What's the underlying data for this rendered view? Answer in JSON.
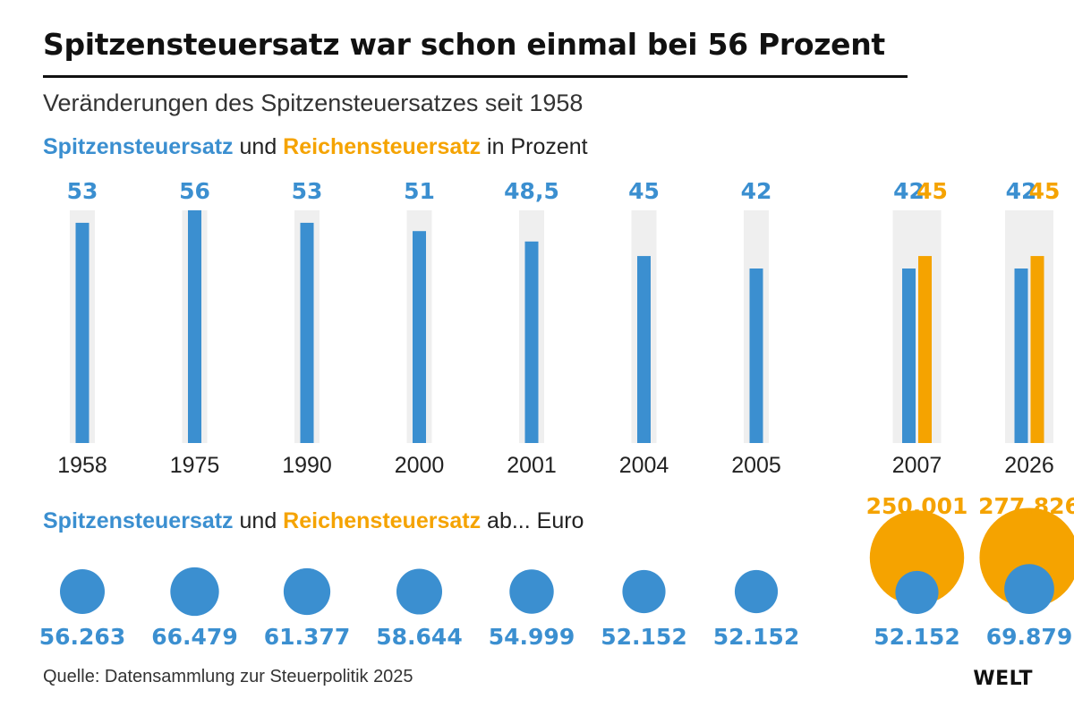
{
  "header": {
    "title": "Spitzensteuersatz war schon einmal bei 56 Prozent",
    "subtitle": "Veränderungen des Spitzensteuersatzes seit 1958"
  },
  "legend_top": {
    "blue": "Spitzensteuersatz",
    "mid": " und ",
    "orange": "Reichensteuersatz",
    "tail": " in Prozent"
  },
  "legend_bottom": {
    "blue": "Spitzensteuersatz",
    "mid": " und ",
    "orange": "Reichensteuersatz",
    "tail": " ab... Euro"
  },
  "footer": {
    "source": "Quelle: Datensammlung zur Steuerpolitik 2025",
    "logo": "WELT"
  },
  "colors": {
    "blue": "#3b8fd0",
    "orange": "#f5a300",
    "track": "#efefef"
  },
  "chart_data": [
    {
      "type": "bar",
      "categories": [
        "1958",
        "1975",
        "1990",
        "2000",
        "2001",
        "2004",
        "2005",
        "2007",
        "2026"
      ],
      "series": [
        {
          "name": "Spitzensteuersatz",
          "values": [
            53,
            56,
            53,
            51,
            48.5,
            45,
            42,
            42,
            42
          ],
          "labels": [
            "53",
            "56",
            "53",
            "51",
            "48,5",
            "45",
            "42",
            "42",
            "42"
          ]
        },
        {
          "name": "Reichensteuersatz",
          "values": [
            null,
            null,
            null,
            null,
            null,
            null,
            null,
            45,
            45
          ],
          "labels": [
            "",
            "",
            "",
            "",
            "",
            "",
            "",
            "45",
            "45"
          ]
        }
      ],
      "ylim": [
        0,
        56
      ]
    },
    {
      "type": "bubble",
      "categories": [
        "1958",
        "1975",
        "1990",
        "2000",
        "2001",
        "2004",
        "2005",
        "2007",
        "2026"
      ],
      "series": [
        {
          "name": "Spitzensteuersatz",
          "values": [
            56263,
            66479,
            61377,
            58644,
            54999,
            52152,
            52152,
            52152,
            69879
          ],
          "labels": [
            "56.263",
            "66.479",
            "61.377",
            "58.644",
            "54.999",
            "52.152",
            "52.152",
            "52.152",
            "69.879"
          ]
        },
        {
          "name": "Reichensteuersatz",
          "values": [
            null,
            null,
            null,
            null,
            null,
            null,
            null,
            250001,
            277826
          ],
          "labels": [
            "",
            "",
            "",
            "",
            "",
            "",
            "",
            "250.001",
            "277.826"
          ]
        }
      ]
    }
  ]
}
